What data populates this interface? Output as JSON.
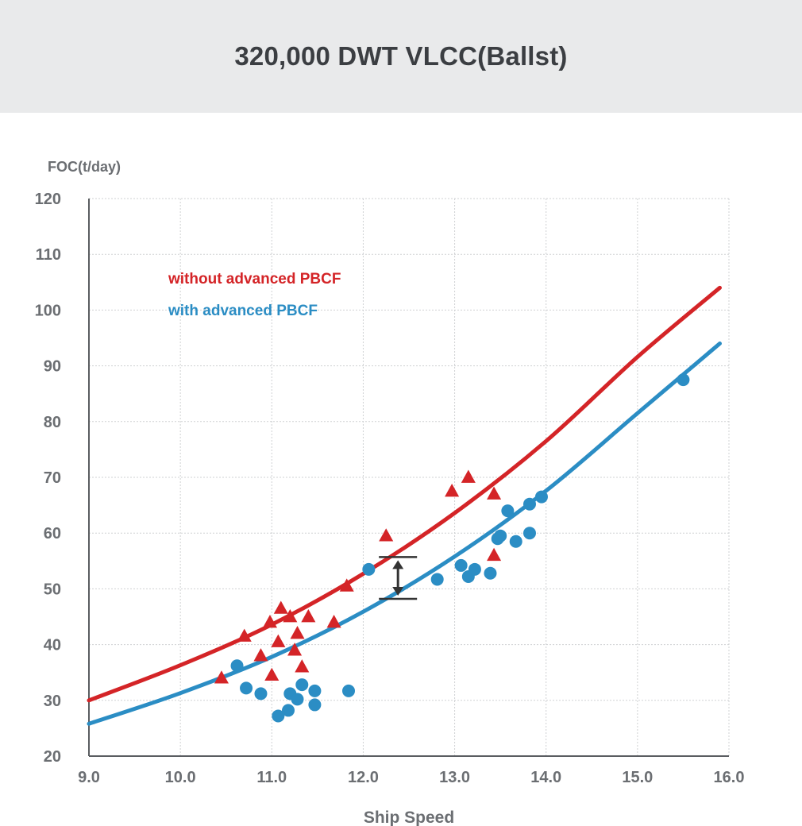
{
  "title": "320,000 DWT VLCC(Ballst)",
  "chart_data": {
    "type": "scatter",
    "title": "320,000 DWT VLCC(Ballst)",
    "xlabel": "Ship Speed",
    "ylabel": "FOC(t/day)",
    "xlim": [
      9.0,
      16.0
    ],
    "ylim": [
      20,
      120
    ],
    "x_ticks": [
      "9.0",
      "10.0",
      "11.0",
      "12.0",
      "13.0",
      "14.0",
      "15.0",
      "16.0"
    ],
    "y_ticks": [
      "20",
      "30",
      "40",
      "50",
      "60",
      "70",
      "80",
      "90",
      "100",
      "110",
      "120"
    ],
    "grid": true,
    "legend_position": "top-left",
    "colors": {
      "without": "#d42427",
      "with": "#2b8dc4",
      "marker": "#333333"
    },
    "series": [
      {
        "name": "without advanced PBCF",
        "marker": "triangle",
        "points": [
          [
            10.45,
            34
          ],
          [
            10.7,
            41.5
          ],
          [
            10.88,
            38
          ],
          [
            10.98,
            44
          ],
          [
            11.0,
            34.5
          ],
          [
            11.07,
            40.5
          ],
          [
            11.1,
            46.5
          ],
          [
            11.2,
            45
          ],
          [
            11.25,
            39
          ],
          [
            11.28,
            42
          ],
          [
            11.33,
            36
          ],
          [
            11.4,
            45
          ],
          [
            11.68,
            44
          ],
          [
            11.82,
            50.5
          ],
          [
            12.25,
            59.5
          ],
          [
            12.97,
            67.5
          ],
          [
            13.15,
            70
          ],
          [
            13.43,
            67
          ],
          [
            13.43,
            56
          ]
        ]
      },
      {
        "name": "with advanced PBCF",
        "marker": "circle",
        "points": [
          [
            10.62,
            36.2
          ],
          [
            10.72,
            32.2
          ],
          [
            10.88,
            31.2
          ],
          [
            11.07,
            27.2
          ],
          [
            11.18,
            28.2
          ],
          [
            11.2,
            31.2
          ],
          [
            11.28,
            30.2
          ],
          [
            11.33,
            32.8
          ],
          [
            11.47,
            31.7
          ],
          [
            11.47,
            29.2
          ],
          [
            11.84,
            31.7
          ],
          [
            12.06,
            53.5
          ],
          [
            12.81,
            51.7
          ],
          [
            13.07,
            54.2
          ],
          [
            13.15,
            52.2
          ],
          [
            13.22,
            53.5
          ],
          [
            13.39,
            52.8
          ],
          [
            13.47,
            59
          ],
          [
            13.5,
            59.5
          ],
          [
            13.58,
            64
          ],
          [
            13.67,
            58.5
          ],
          [
            13.82,
            60
          ],
          [
            13.82,
            65.2
          ],
          [
            13.95,
            66.5
          ],
          [
            15.5,
            87.5
          ]
        ]
      }
    ],
    "fit_curves": [
      {
        "name": "without advanced PBCF",
        "points": [
          [
            9.0,
            30
          ],
          [
            10.0,
            36.3
          ],
          [
            11.0,
            43.6
          ],
          [
            12.0,
            52.7
          ],
          [
            13.0,
            63.6
          ],
          [
            14.0,
            76.5
          ],
          [
            15.0,
            91.6
          ],
          [
            15.9,
            104
          ]
        ]
      },
      {
        "name": "with advanced PBCF",
        "points": [
          [
            9.0,
            25.8
          ],
          [
            10.0,
            31.3
          ],
          [
            11.0,
            37.8
          ],
          [
            12.0,
            45.9
          ],
          [
            13.0,
            55.8
          ],
          [
            14.0,
            67.6
          ],
          [
            15.0,
            81.5
          ],
          [
            15.9,
            94
          ]
        ]
      }
    ],
    "difference_marker": {
      "x": 12.38,
      "y_top": 55.7,
      "y_bottom": 48.2
    }
  }
}
